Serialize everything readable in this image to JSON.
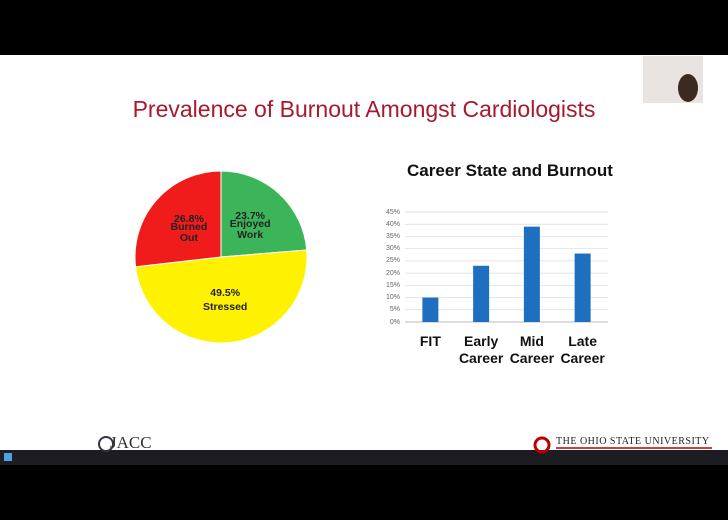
{
  "title": "Prevalence of Burnout Amongst Cardiologists",
  "footer": {
    "left_logo": "JACC",
    "right_logo": "THE OHIO STATE UNIVERSITY"
  },
  "chart_data": [
    {
      "type": "pie",
      "categories": [
        "Enjoyed Work",
        "Stressed",
        "Burned Out"
      ],
      "values": [
        23.7,
        49.5,
        26.8
      ],
      "value_labels": [
        "23.7%",
        "49.5%",
        "26.8%"
      ],
      "colors": [
        "#3cb55a",
        "#fff200",
        "#f01c1c"
      ]
    },
    {
      "type": "bar",
      "title": "Career State and Burnout",
      "categories": [
        "FIT",
        "Early Career",
        "Mid Career",
        "Late Career"
      ],
      "values": [
        10,
        23,
        39,
        28
      ],
      "color": "#1f6fc0",
      "ylim": [
        0,
        45
      ],
      "yticks": [
        {
          "value": 0,
          "label": "0%"
        },
        {
          "value": 5,
          "label": "5%"
        },
        {
          "value": 10,
          "label": "10%"
        },
        {
          "value": 15,
          "label": "15%"
        },
        {
          "value": 20,
          "label": "20%"
        },
        {
          "value": 25,
          "label": "25%"
        },
        {
          "value": 30,
          "label": "30%"
        },
        {
          "value": 35,
          "label": "35%"
        },
        {
          "value": 40,
          "label": "40%"
        },
        {
          "value": 45,
          "label": "45%"
        }
      ],
      "grid": true
    }
  ]
}
